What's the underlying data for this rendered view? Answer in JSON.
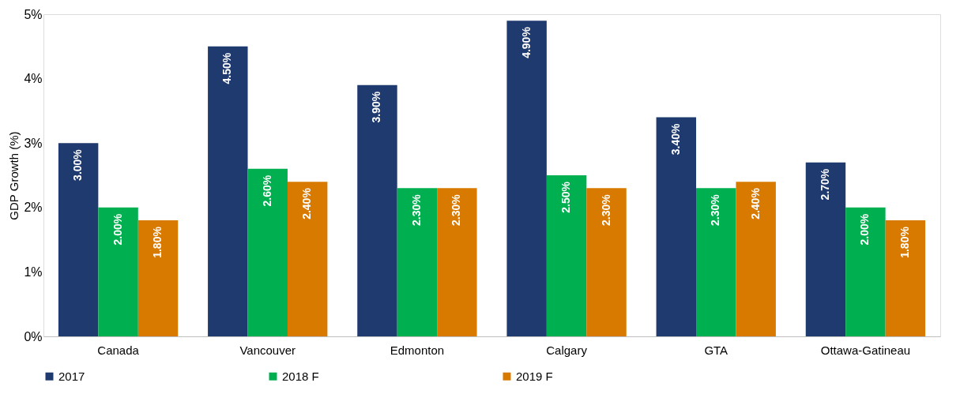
{
  "chart_data": {
    "type": "bar",
    "ylabel": "GDP Growth (%)",
    "categories": [
      "Canada",
      "Vancouver",
      "Edmonton",
      "Calgary",
      "GTA",
      "Ottawa-Gatineau"
    ],
    "series": [
      {
        "name": "2017",
        "color": "#1f3a6e",
        "values": [
          3.0,
          4.5,
          3.9,
          4.9,
          3.4,
          2.7
        ],
        "value_labels": [
          "3.00%",
          "4.50%",
          "3.90%",
          "4.90%",
          "3.40%",
          "2.70%"
        ]
      },
      {
        "name": "2018 F",
        "color": "#00b050",
        "values": [
          2.0,
          2.6,
          2.3,
          2.5,
          2.3,
          2.0
        ],
        "value_labels": [
          "2.00%",
          "2.60%",
          "2.30%",
          "2.50%",
          "2.30%",
          "2.00%"
        ]
      },
      {
        "name": "2019 F",
        "color": "#d97a00",
        "values": [
          1.8,
          2.4,
          2.3,
          2.3,
          2.4,
          1.8
        ],
        "value_labels": [
          "1.80%",
          "2.40%",
          "2.30%",
          "2.30%",
          "2.40%",
          "1.80%"
        ]
      }
    ],
    "ylim": [
      0,
      5
    ],
    "yticks": [
      {
        "value": 0,
        "label": "0%"
      },
      {
        "value": 1,
        "label": "1%"
      },
      {
        "value": 2,
        "label": "2%"
      },
      {
        "value": 3,
        "label": "3%"
      },
      {
        "value": 4,
        "label": "4%"
      },
      {
        "value": 5,
        "label": "5%"
      }
    ],
    "grid": false,
    "legend": "bottom"
  }
}
